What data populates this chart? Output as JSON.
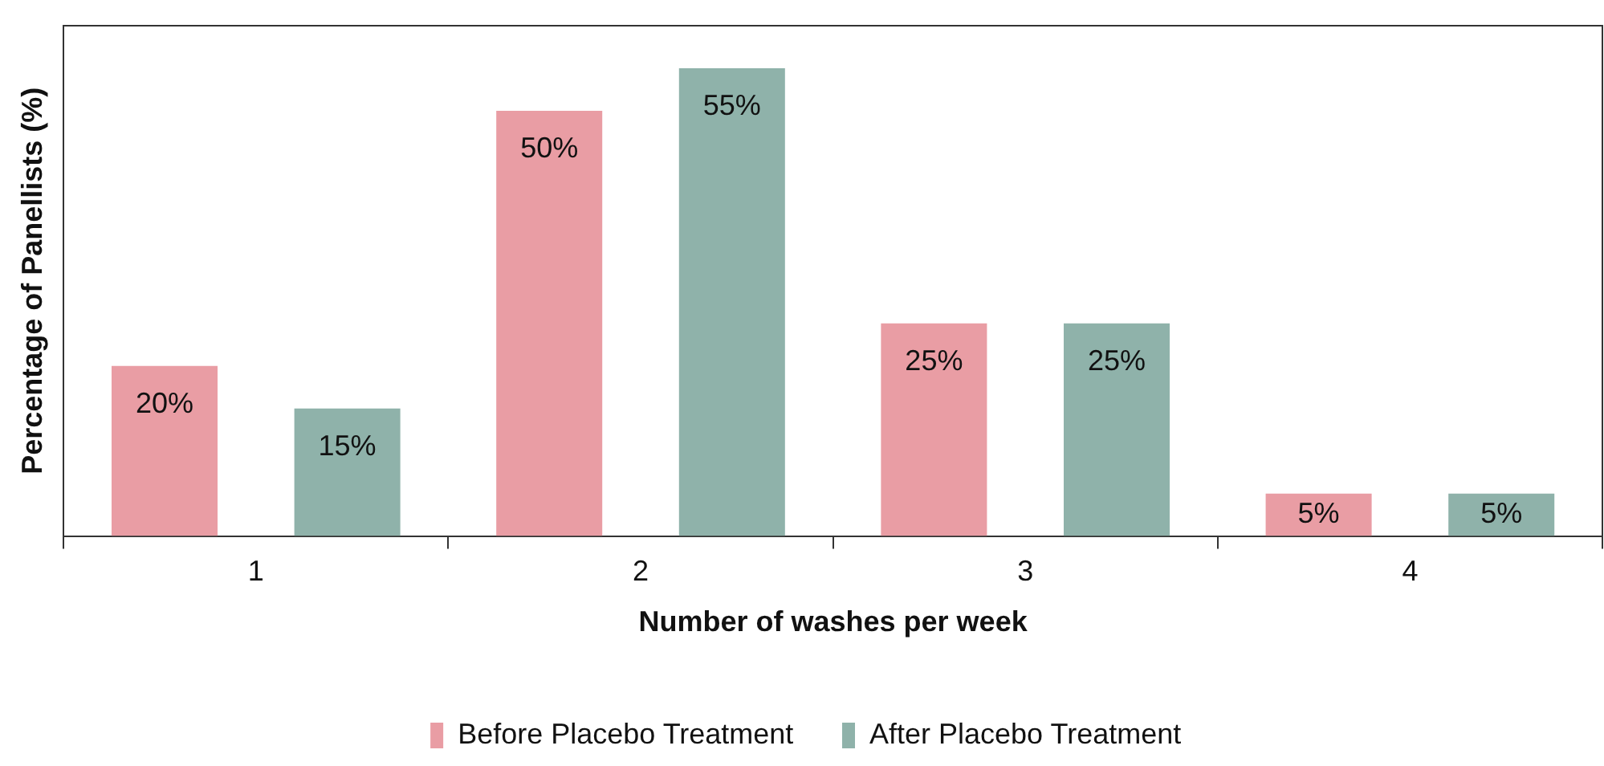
{
  "chart_data": {
    "type": "bar",
    "xlabel": "Number of washes per week",
    "ylabel": "Percentage of Panellists (%)",
    "categories": [
      "1",
      "2",
      "3",
      "4"
    ],
    "series": [
      {
        "name": "Before Placebo Treatment",
        "color": "#e99da4",
        "values": [
          20,
          50,
          25,
          5
        ],
        "value_labels": [
          "20%",
          "50%",
          "25%",
          "5%"
        ]
      },
      {
        "name": "After Placebo Treatment",
        "color": "#8fb2aa",
        "values": [
          15,
          55,
          25,
          5
        ],
        "value_labels": [
          "15%",
          "55%",
          "25%",
          "5%"
        ]
      }
    ],
    "ylim": [
      0,
      60
    ],
    "tick_labels": "x",
    "grid": false,
    "legend": "bottom"
  }
}
